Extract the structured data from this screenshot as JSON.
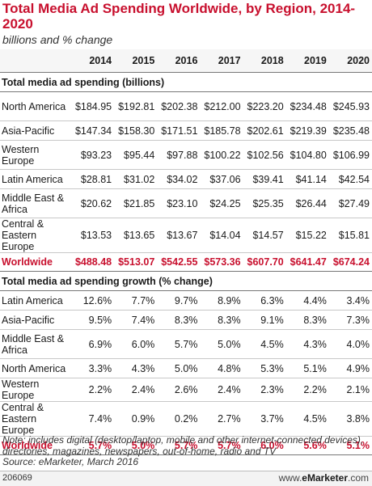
{
  "title": "Total Media Ad Spending Worldwide, by Region, 2014-2020",
  "subtitle": "billions and % change",
  "colors": {
    "title": "#c8102e",
    "total": "#c8102e"
  },
  "chart_data": {
    "type": "table",
    "years": [
      "2014",
      "2015",
      "2016",
      "2017",
      "2018",
      "2019",
      "2020"
    ],
    "sections": [
      {
        "heading": "Total media ad spending (billions)",
        "rows": [
          {
            "label": "North America",
            "values": [
              "$184.95",
              "$192.81",
              "$202.38",
              "$212.00",
              "$223.20",
              "$234.48",
              "$245.93"
            ]
          },
          {
            "label": "Asia-Pacific",
            "values": [
              "$147.34",
              "$158.30",
              "$171.51",
              "$185.78",
              "$202.61",
              "$219.39",
              "$235.48"
            ]
          },
          {
            "label": "Western Europe",
            "values": [
              "$93.23",
              "$95.44",
              "$97.88",
              "$100.22",
              "$102.56",
              "$104.80",
              "$106.99"
            ]
          },
          {
            "label": "Latin America",
            "values": [
              "$28.81",
              "$31.02",
              "$34.02",
              "$37.06",
              "$39.41",
              "$41.14",
              "$42.54"
            ]
          },
          {
            "label": "Middle East & Africa",
            "values": [
              "$20.62",
              "$21.85",
              "$23.10",
              "$24.25",
              "$25.35",
              "$26.44",
              "$27.49"
            ]
          },
          {
            "label": "Central & Eastern Europe",
            "values": [
              "$13.53",
              "$13.65",
              "$13.67",
              "$14.04",
              "$14.57",
              "$15.22",
              "$15.81"
            ]
          }
        ],
        "total": {
          "label": "Worldwide",
          "values": [
            "$488.48",
            "$513.07",
            "$542.55",
            "$573.36",
            "$607.70",
            "$641.47",
            "$674.24"
          ]
        }
      },
      {
        "heading": "Total media ad spending growth (% change)",
        "rows": [
          {
            "label": "Latin America",
            "values": [
              "12.6%",
              "7.7%",
              "9.7%",
              "8.9%",
              "6.3%",
              "4.4%",
              "3.4%"
            ]
          },
          {
            "label": "Asia-Pacific",
            "values": [
              "9.5%",
              "7.4%",
              "8.3%",
              "8.3%",
              "9.1%",
              "8.3%",
              "7.3%"
            ]
          },
          {
            "label": "Middle East & Africa",
            "values": [
              "6.9%",
              "6.0%",
              "5.7%",
              "5.0%",
              "4.5%",
              "4.3%",
              "4.0%"
            ]
          },
          {
            "label": "North America",
            "values": [
              "3.3%",
              "4.3%",
              "5.0%",
              "4.8%",
              "5.3%",
              "5.1%",
              "4.9%"
            ]
          },
          {
            "label": "Western Europe",
            "values": [
              "2.2%",
              "2.4%",
              "2.6%",
              "2.4%",
              "2.3%",
              "2.2%",
              "2.1%"
            ]
          },
          {
            "label": "Central & Eastern Europe",
            "values": [
              "7.4%",
              "0.9%",
              "0.2%",
              "2.7%",
              "3.7%",
              "4.5%",
              "3.8%"
            ]
          }
        ],
        "total": {
          "label": "Worldwide",
          "values": [
            "5.7%",
            "5.0%",
            "5.7%",
            "5.7%",
            "6.0%",
            "5.6%",
            "5.1%"
          ]
        }
      }
    ]
  },
  "note": "Note: includes digital (desktop/laptop, mobile and other internet-connected devices), directories, magazines, newspapers, out-of-home, radio and TV",
  "source": "Source: eMarketer, March 2016",
  "footer": {
    "id": "206069",
    "site_prefix": "www.",
    "site_brand": "eMarketer",
    "site_suffix": ".com"
  }
}
